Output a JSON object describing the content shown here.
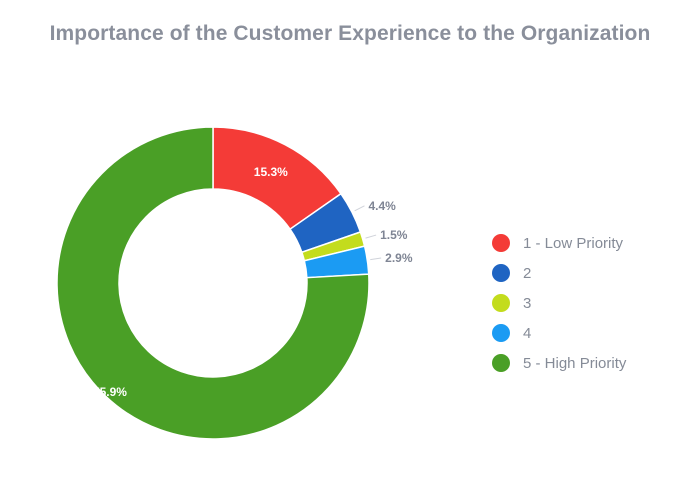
{
  "chart_data": {
    "type": "pie",
    "variant": "donut",
    "title": "Importance of the Customer Experience to the Organization",
    "legend_position": "right",
    "slices": [
      {
        "label": "1 - Low Priority",
        "value": 15.3,
        "value_label": "15.3%",
        "color": "#f43b37",
        "label_style": "inside"
      },
      {
        "label": "2",
        "value": 4.4,
        "value_label": "4.4%",
        "color": "#1f64c2",
        "label_style": "outside"
      },
      {
        "label": "3",
        "value": 1.5,
        "value_label": "1.5%",
        "color": "#c3dc1d",
        "label_style": "outside"
      },
      {
        "label": "4",
        "value": 2.9,
        "value_label": "2.9%",
        "color": "#1b9bf3",
        "label_style": "outside"
      },
      {
        "label": "5 - High Priority",
        "value": 75.9,
        "value_label": "75.9%",
        "color": "#4a9f26",
        "label_style": "inside"
      }
    ]
  }
}
